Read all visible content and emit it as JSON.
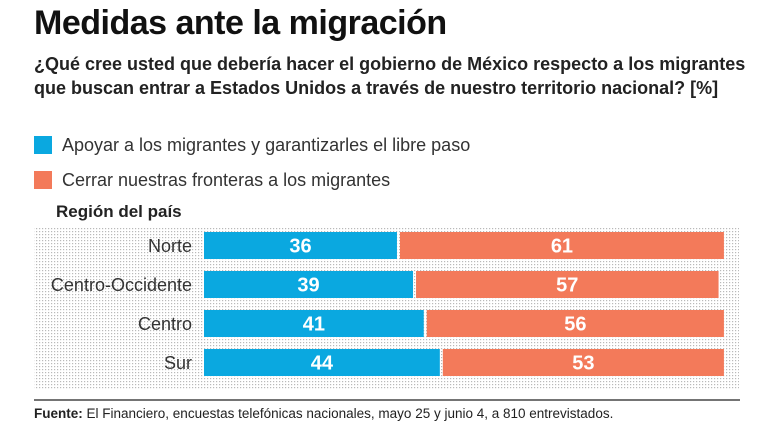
{
  "title": "Medidas ante la migración",
  "subtitle": "¿Qué cree usted que debería hacer el gobierno de México respecto a los migrantes que buscan entrar a Estados Unidos a través de nuestro territorio nacional? [%]",
  "legend": [
    {
      "label": "Apoyar a los migrantes y garantizarles el libre paso",
      "color": "#0aa8e0"
    },
    {
      "label": "Cerrar nuestras fronteras a los migrantes",
      "color": "#f37a5a"
    }
  ],
  "region_header": "Región del país",
  "source": {
    "label": "Fuente:",
    "text": "El Financiero, encuestas telefónicas nacionales, mayo 25 y junio 4, a 810 entrevistados."
  },
  "chart_data": {
    "type": "bar",
    "orientation": "horizontal",
    "stacked": true,
    "categories": [
      "Norte",
      "Centro-Occidente",
      "Centro",
      "Sur"
    ],
    "series": [
      {
        "name": "Apoyar a los migrantes y garantizarles el libre paso",
        "values": [
          36,
          39,
          41,
          44
        ],
        "color": "#0aa8e0"
      },
      {
        "name": "Cerrar nuestras fronteras a los migrantes",
        "values": [
          61,
          57,
          56,
          53
        ],
        "color": "#f37a5a"
      }
    ],
    "xlim": [
      0,
      100
    ],
    "grid": false,
    "legend_position": "top-left"
  }
}
